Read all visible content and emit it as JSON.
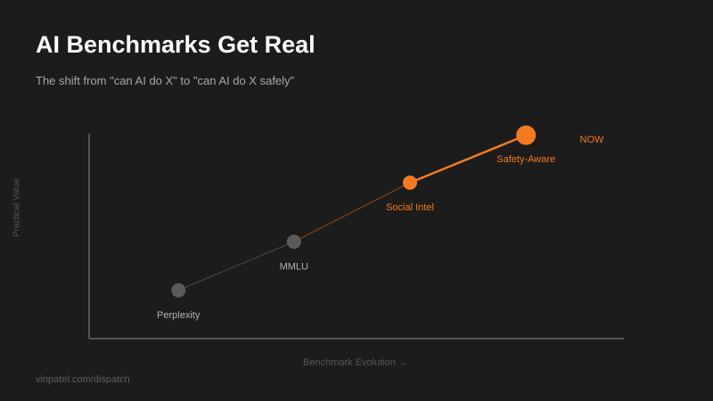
{
  "header": {
    "title": "AI Benchmarks Get Real",
    "subtitle": "The shift from \"can AI do X\" to \"can AI do X safely\""
  },
  "footer": {
    "source": "vinpatel.com/dispatch"
  },
  "colors": {
    "background": "#1c1c1c",
    "accent": "#f47a20",
    "neutral_point": "#5a5a5a",
    "axis": "#666666"
  },
  "chart_data": {
    "type": "line",
    "xlabel": "Benchmark Evolution →",
    "ylabel": "Practical Value",
    "grid": false,
    "legend": "none",
    "xlim": [
      0,
      10
    ],
    "ylim": [
      0,
      10
    ],
    "annotation": "NOW",
    "points": [
      {
        "label": "Perplexity",
        "x": 1.67,
        "y": 2.17,
        "highlight": false
      },
      {
        "label": "MMLU",
        "x": 3.83,
        "y": 4.35,
        "highlight": false
      },
      {
        "label": "Social Intel",
        "x": 6.0,
        "y": 7.0,
        "highlight": true
      },
      {
        "label": "Safety-Aware",
        "x": 8.17,
        "y": 9.13,
        "highlight": true
      }
    ]
  }
}
